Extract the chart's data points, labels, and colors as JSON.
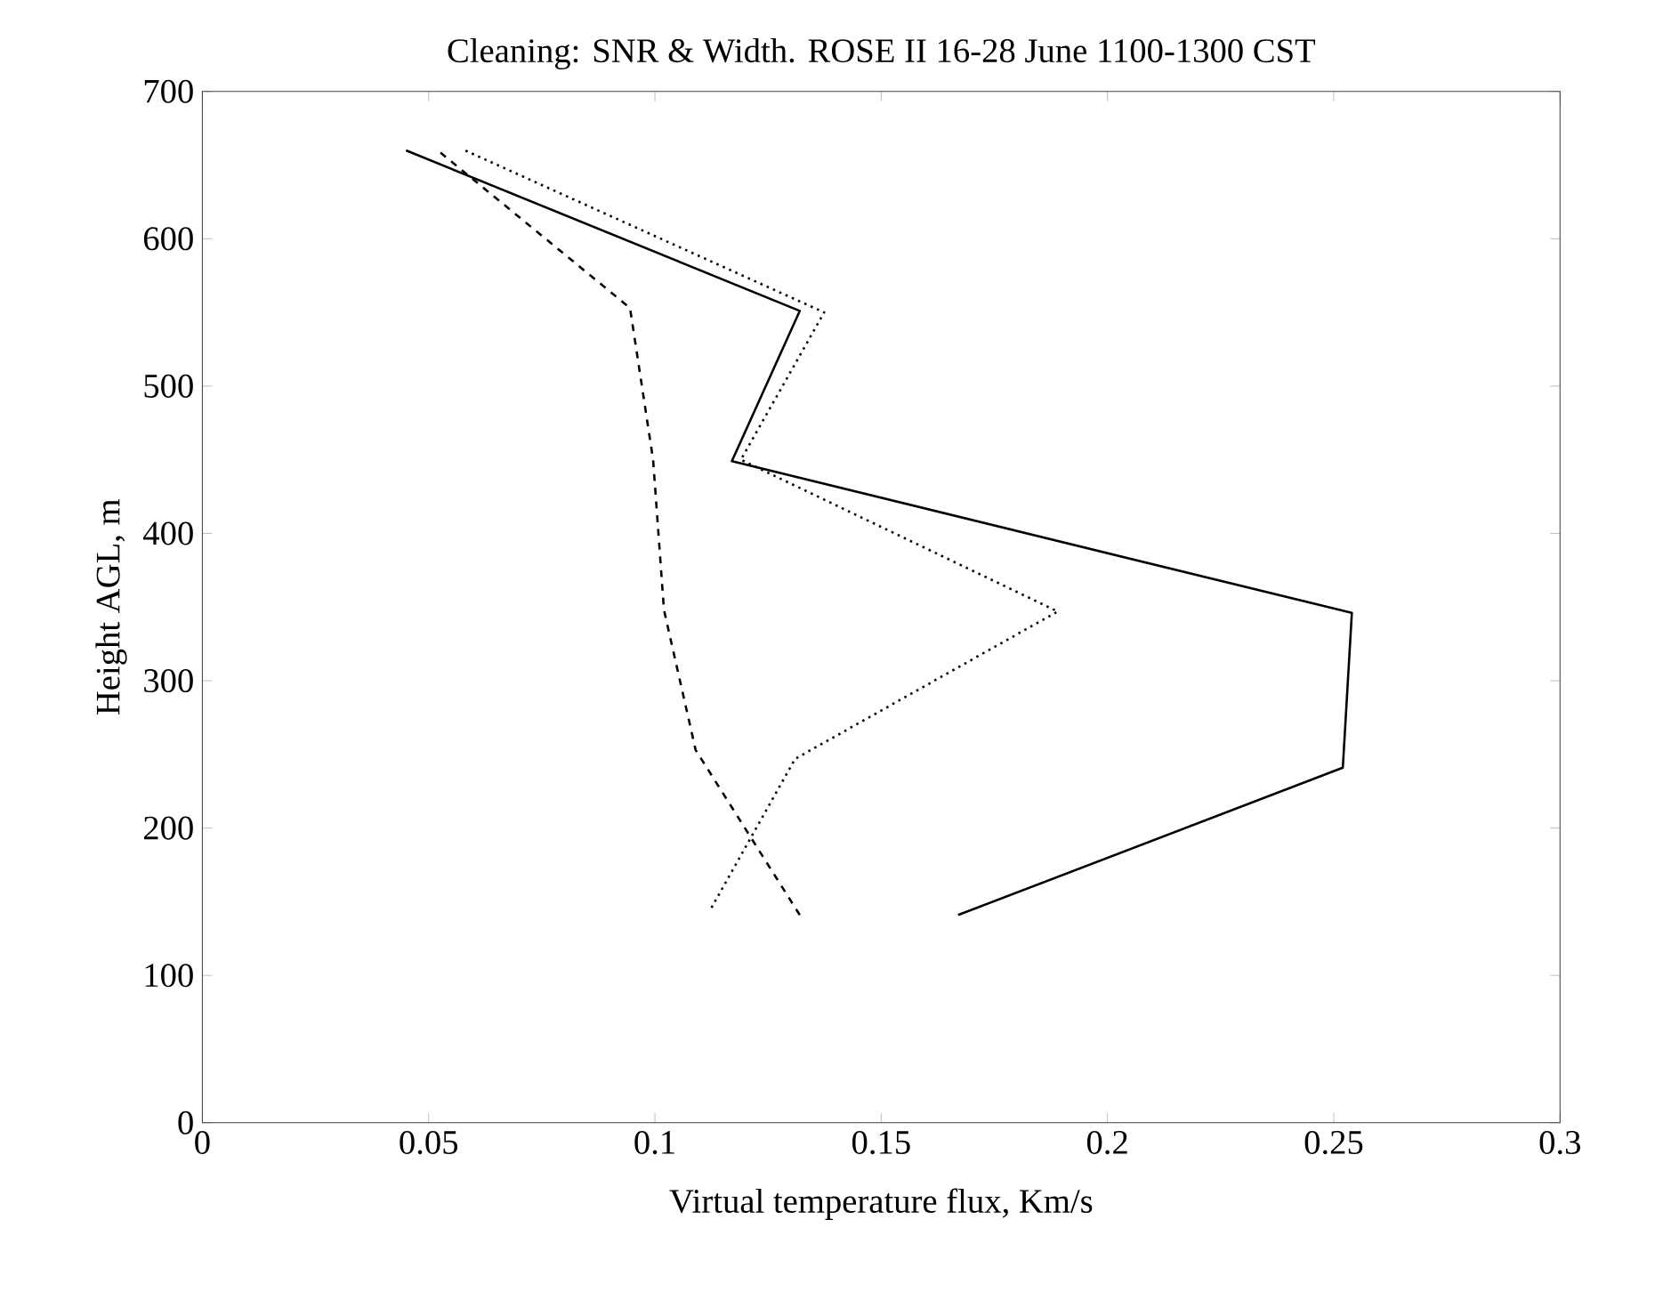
{
  "chart_data": {
    "type": "line",
    "title": "Cleaning:  SNR & Width.  ROSE II 16-28 June 1100-1300 CST",
    "xlabel": "Virtual temperature flux, Km/s",
    "ylabel": "Height AGL, m",
    "xlim": [
      0,
      0.3
    ],
    "ylim": [
      0,
      700
    ],
    "xticks": [
      0,
      0.05,
      0.1,
      0.15,
      0.2,
      0.25,
      0.3
    ],
    "yticks": [
      0,
      100,
      200,
      300,
      400,
      500,
      600,
      700
    ],
    "series": [
      {
        "color": "#000000",
        "line_style": "solid",
        "x": [
          0.167,
          0.252,
          0.254,
          0.117,
          0.132,
          0.045
        ],
        "values": [
          141,
          241,
          346,
          449,
          551,
          660
        ]
      },
      {
        "color": "#000000",
        "line_style": "dashed",
        "x": [
          0.132,
          0.109,
          0.102,
          0.0996,
          0.0945,
          0.052
        ],
        "values": [
          141,
          253,
          348,
          450,
          553,
          660
        ]
      },
      {
        "color": "#000000",
        "line_style": "dotted",
        "x": [
          0.1125,
          0.131,
          0.189,
          0.119,
          0.1374,
          0.058
        ],
        "values": [
          146,
          247,
          347,
          450,
          550,
          660
        ]
      }
    ]
  }
}
